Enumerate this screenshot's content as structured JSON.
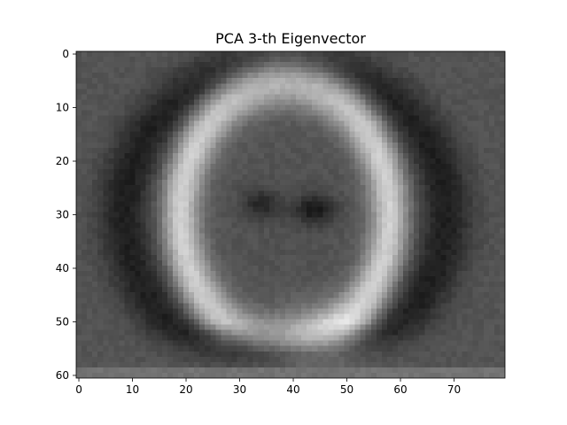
{
  "chart_data": {
    "type": "heatmap",
    "title": "PCA 3-th Eigenvector",
    "xlabel": "",
    "ylabel": "",
    "colormap": "gray",
    "image_shape": [
      61,
      80
    ],
    "xlim": [
      -0.5,
      79.5
    ],
    "ylim": [
      60.5,
      -0.5
    ],
    "x_ticks": [
      0,
      10,
      20,
      30,
      40,
      50,
      60,
      70
    ],
    "y_ticks": [
      0,
      10,
      20,
      30,
      40,
      50,
      60
    ],
    "grid": false,
    "background_level": 0.33,
    "features": [
      {
        "name": "outer-hair-shadow",
        "kind": "dark-band",
        "center": [
          38.5,
          30.0
        ],
        "radii": [
          30.0,
          28.0
        ],
        "intensity": 0.12
      },
      {
        "name": "face-bright-ring",
        "kind": "bright-band",
        "center": [
          38.5,
          30.0
        ],
        "radii": [
          19.5,
          25.0
        ],
        "intensity": 0.82
      },
      {
        "name": "face-interior",
        "kind": "region",
        "center": [
          39.5,
          33.0
        ],
        "radii": [
          13.0,
          18.0
        ],
        "intensity": 0.3
      },
      {
        "name": "left-eye",
        "kind": "spot",
        "center": [
          34.0,
          28.0
        ],
        "intensity": 0.18
      },
      {
        "name": "right-eye",
        "kind": "spot",
        "center": [
          44.0,
          29.0
        ],
        "intensity": 0.12
      },
      {
        "name": "neck",
        "kind": "bright-spot",
        "center": [
          45.0,
          53.0
        ],
        "intensity": 0.58
      }
    ]
  }
}
